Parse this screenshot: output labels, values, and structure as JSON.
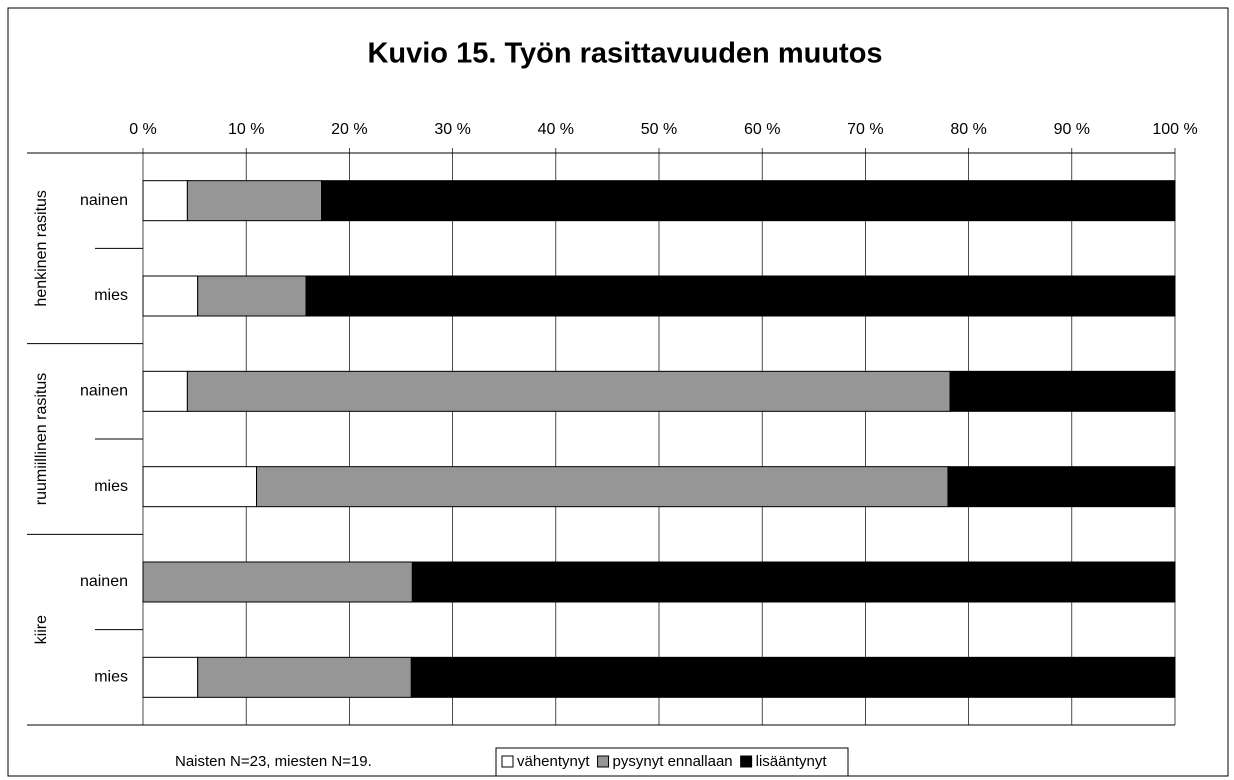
{
  "chart_data": {
    "type": "stacked-barh",
    "title": "Kuvio 15. Työn rasittavuuden muutos",
    "note": "Naisten N=23, miesten N=19.",
    "groups": [
      "henkinen rasitus",
      "ruumiillinen rasitus",
      "kiire"
    ],
    "categories": [
      "nainen",
      "mies",
      "nainen",
      "mies",
      "nainen",
      "mies"
    ],
    "series": [
      {
        "name": "vähentynyt",
        "color": "#ffffff",
        "values": [
          4.3,
          5.3,
          4.3,
          11.0,
          0,
          5.3
        ]
      },
      {
        "name": "pysynyt ennallaan",
        "color": "#969696",
        "values": [
          13.0,
          10.5,
          73.9,
          67.0,
          26.1,
          20.7
        ]
      },
      {
        "name": "lisääntynyt",
        "color": "#000000",
        "values": [
          82.7,
          84.2,
          21.8,
          22.0,
          73.9,
          74.0
        ]
      }
    ],
    "xlim": [
      0,
      100
    ],
    "xticks": [
      {
        "value": 0,
        "label": "0 %"
      },
      {
        "value": 10,
        "label": "10 %"
      },
      {
        "value": 20,
        "label": "20 %"
      },
      {
        "value": 30,
        "label": "30 %"
      },
      {
        "value": 40,
        "label": "40 %"
      },
      {
        "value": 50,
        "label": "50 %"
      },
      {
        "value": 60,
        "label": "60 %"
      },
      {
        "value": 70,
        "label": "70 %"
      },
      {
        "value": 80,
        "label": "80 %"
      },
      {
        "value": 90,
        "label": "90 %"
      },
      {
        "value": 100,
        "label": "100 %"
      }
    ],
    "grid": true,
    "legend": "bottom"
  }
}
